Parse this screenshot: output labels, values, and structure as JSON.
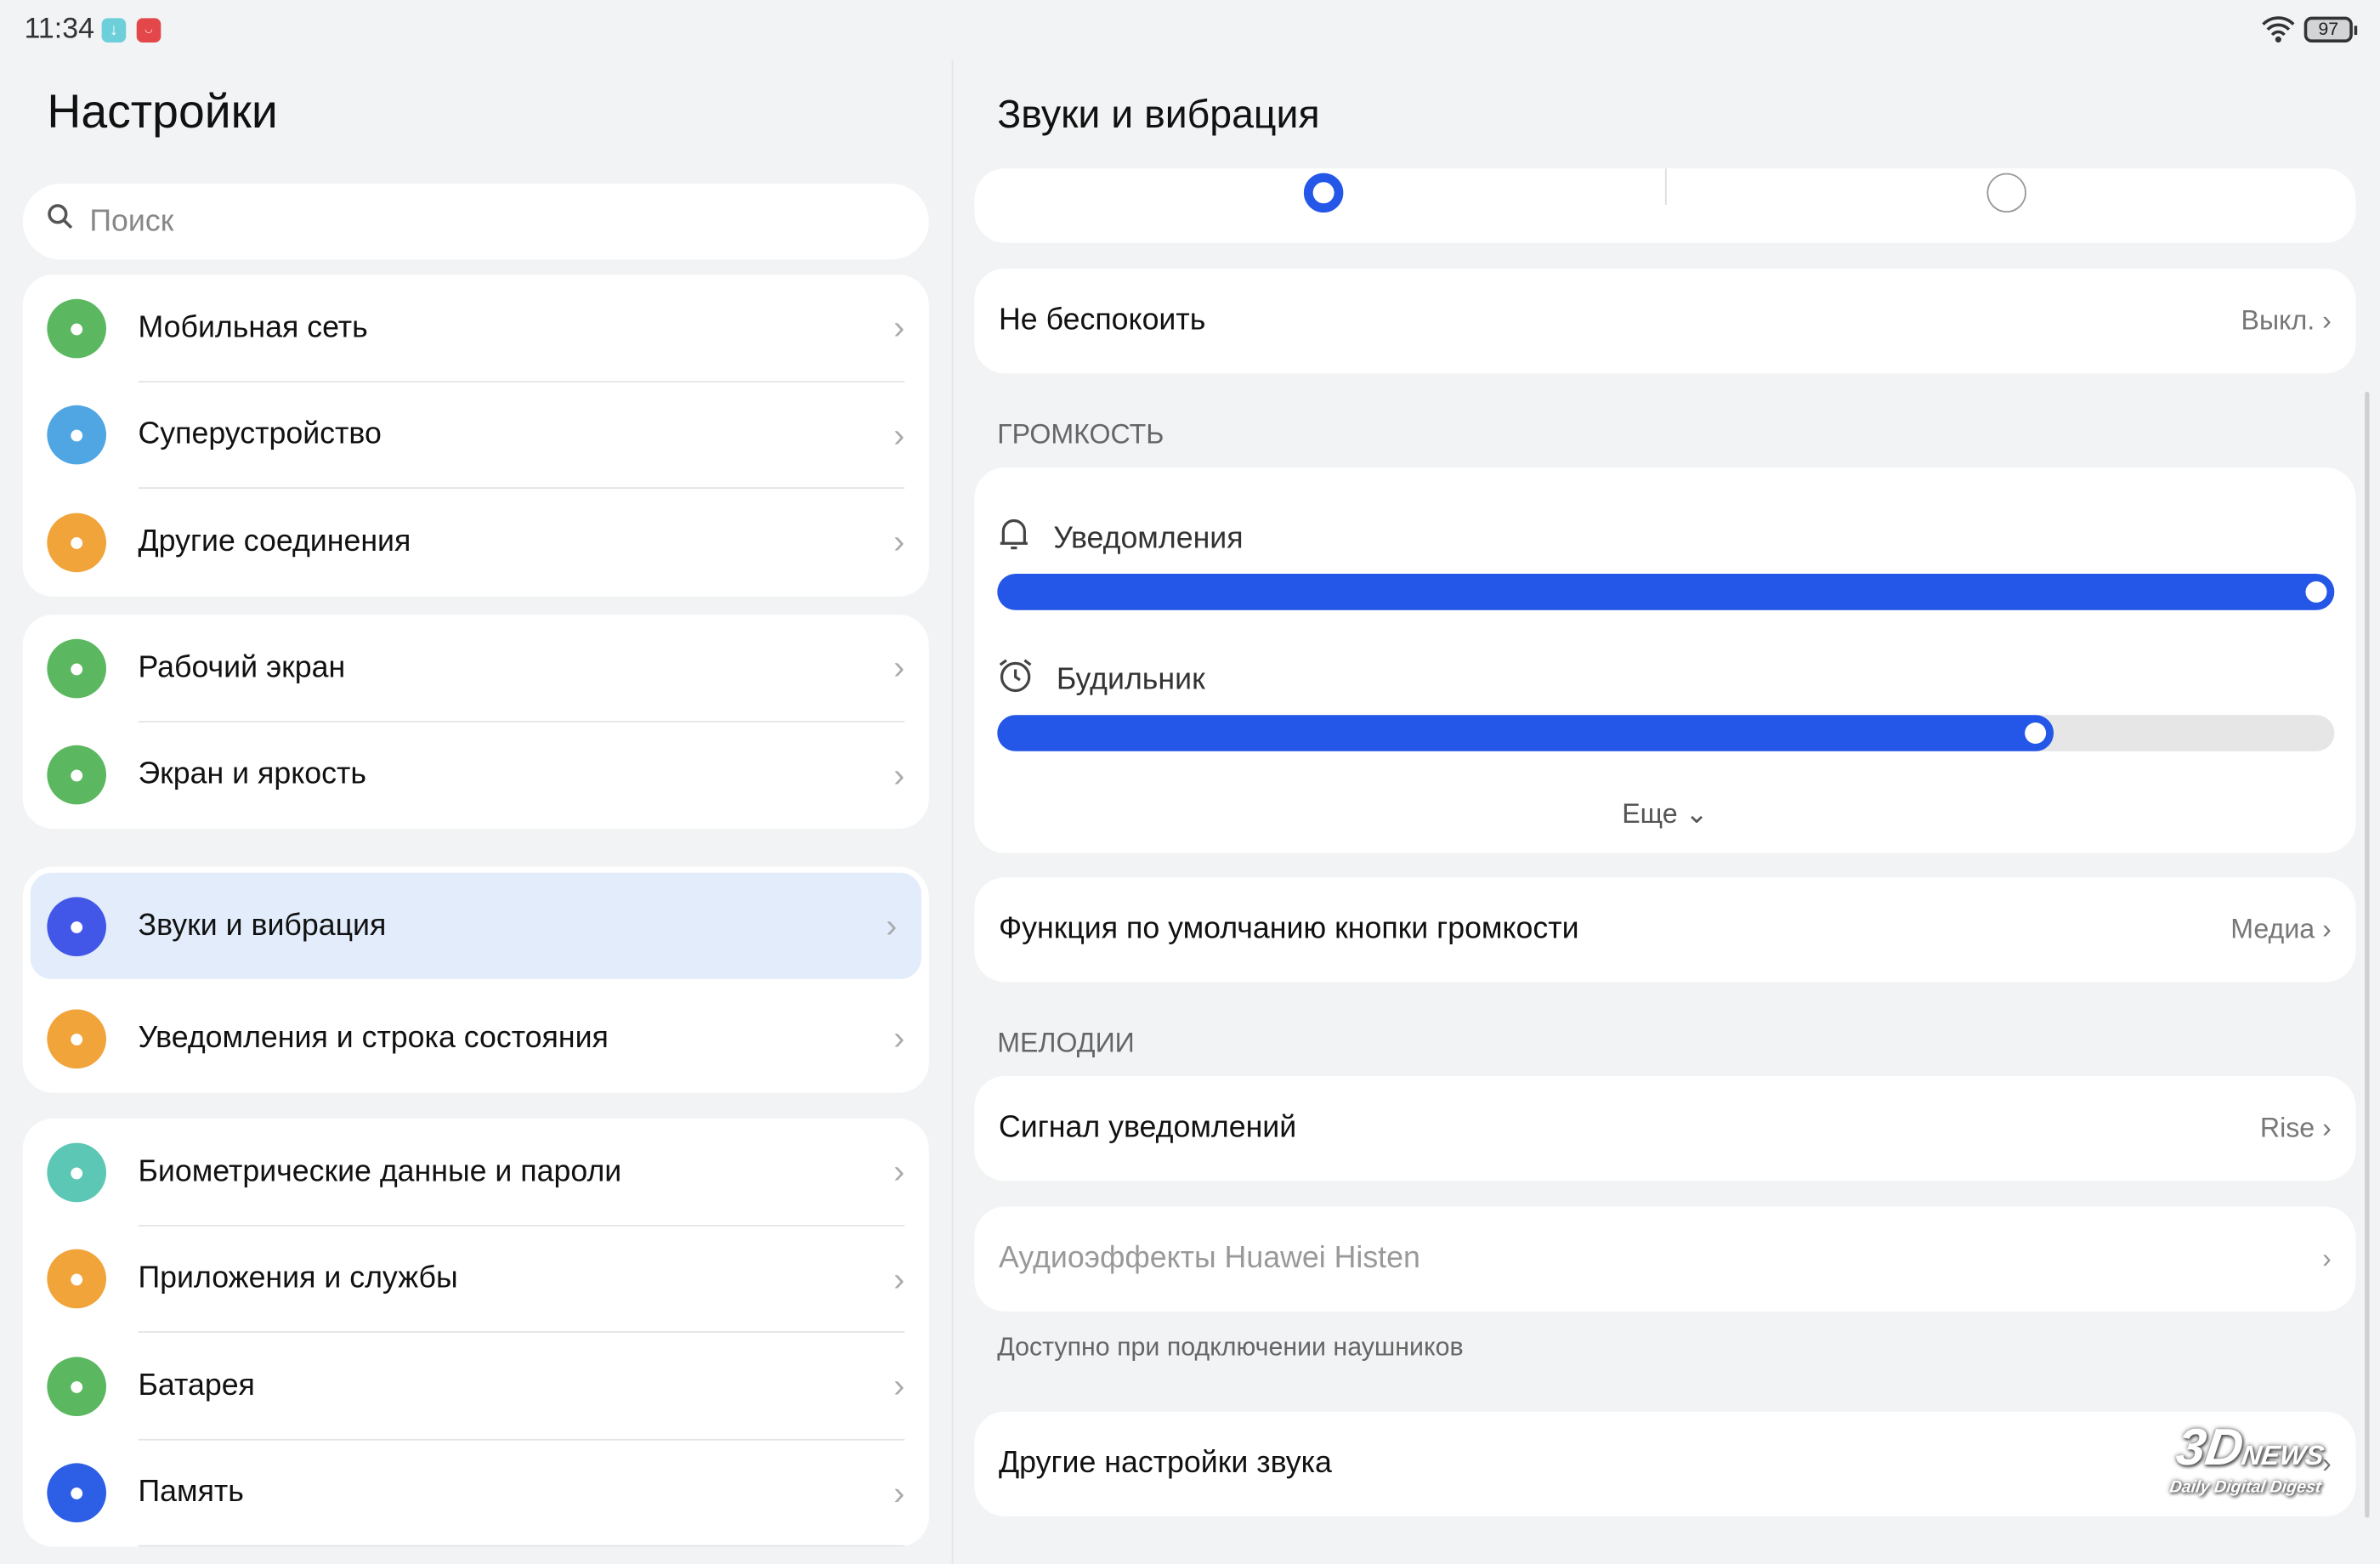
{
  "status": {
    "time": "11:34",
    "battery": "97",
    "icons": [
      "download-icon",
      "huawei-appgallery-icon",
      "wifi-icon",
      "battery-icon"
    ]
  },
  "left": {
    "title": "Настройки",
    "search_placeholder": "Поиск",
    "groups": [
      [
        {
          "label": "Мобильная сеть",
          "icon": "mobile-network-icon",
          "color": "#5cb860"
        },
        {
          "label": "Суперустройство",
          "icon": "superdevice-icon",
          "color": "#4fa6e3"
        },
        {
          "label": "Другие соединения",
          "icon": "link-icon",
          "color": "#f0a43a"
        }
      ],
      [
        {
          "label": "Рабочий экран",
          "icon": "home-screen-icon",
          "color": "#5cb860"
        },
        {
          "label": "Экран и яркость",
          "icon": "eye-icon",
          "color": "#5cb860"
        }
      ],
      [
        {
          "label": "Звуки и вибрация",
          "icon": "speaker-icon",
          "color": "#4257e8",
          "selected": true
        },
        {
          "label": "Уведомления и строка состояния",
          "icon": "bell-icon",
          "color": "#f0a43a"
        }
      ],
      [
        {
          "label": "Биометрические данные и пароли",
          "icon": "key-icon",
          "color": "#5cc7b4"
        },
        {
          "label": "Приложения и службы",
          "icon": "apps-icon",
          "color": "#f0a43a"
        },
        {
          "label": "Батарея",
          "icon": "battery-icon",
          "color": "#5cb860"
        },
        {
          "label": "Память",
          "icon": "storage-icon",
          "color": "#2d5ee6"
        }
      ]
    ]
  },
  "right": {
    "title": "Звуки и вибрация",
    "mode": {
      "selected_index": 0
    },
    "dnd": {
      "label": "Не беспокоить",
      "value": "Выкл."
    },
    "volume_header": "ГРОМКОСТЬ",
    "volume": [
      {
        "label": "Уведомления",
        "icon": "bell-icon",
        "level": 100
      },
      {
        "label": "Будильник",
        "icon": "alarm-clock-icon",
        "level": 79
      }
    ],
    "more": "Еще",
    "volume_key": {
      "label": "Функция по умолчанию кнопки громкости",
      "value": "Медиа"
    },
    "melodies_header": "МЕЛОДИИ",
    "ringtone": {
      "label": "Сигнал уведомлений",
      "value": "Rise"
    },
    "histen": {
      "label": "Аудиоэффекты Huawei Histen",
      "caption": "Доступно при подключении наушников"
    },
    "other": {
      "label": "Другие настройки звука"
    }
  },
  "watermark": {
    "brand": "3DNEWS",
    "tagline": "Daily Digital Digest"
  },
  "colors": {
    "accent": "#2457e8",
    "background": "#f1f3f5",
    "selected_row": "#e2ecfb"
  }
}
